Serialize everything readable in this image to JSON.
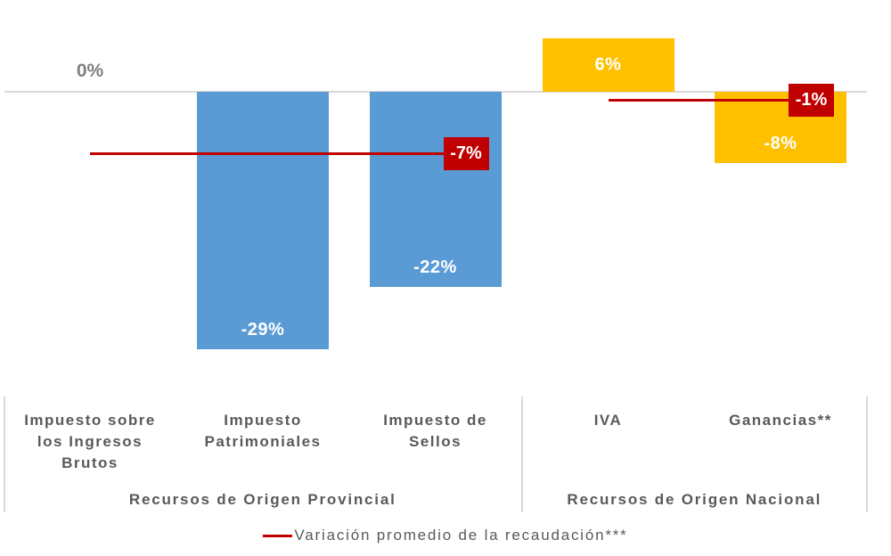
{
  "chart_data": {
    "type": "bar",
    "title": "",
    "xlabel": "",
    "ylabel": "",
    "unit": "%",
    "ylim": [
      -30,
      7
    ],
    "grid": false,
    "legend_position": "bottom-center",
    "legend": "Variación promedio de la recaudación***",
    "categories": [
      {
        "label": "Impuesto sobre los Ingresos Brutos",
        "label_lines": [
          "Impuesto sobre",
          "los Ingresos",
          "Brutos"
        ],
        "value": 0,
        "value_label": "0%",
        "group": 0
      },
      {
        "label": "Impuesto Patrimoniales",
        "label_lines": [
          "Impuesto",
          "Patrimoniales"
        ],
        "value": -29,
        "value_label": "-29%",
        "group": 0
      },
      {
        "label": "Impuesto de Sellos",
        "label_lines": [
          "Impuesto de",
          "Sellos"
        ],
        "value": -22,
        "value_label": "-22%",
        "group": 0
      },
      {
        "label": "IVA",
        "label_lines": [
          "IVA"
        ],
        "value": 6,
        "value_label": "6%",
        "group": 1
      },
      {
        "label": "Ganancias**",
        "label_lines": [
          "Ganancias**"
        ],
        "value": -8,
        "value_label": "-8%",
        "group": 1
      }
    ],
    "groups": [
      {
        "label": "Recursos de Origen Provincial",
        "average": -7,
        "average_label": "-7%",
        "bar_color": "#5B9BD5"
      },
      {
        "label": "Recursos de Origen Nacional",
        "average": -1,
        "average_label": "-1%",
        "bar_color": "#FFC000"
      }
    ],
    "colors": {
      "average_line": "#C00000",
      "average_label_bg": "#C00000",
      "bar_label": "#FFFFFF",
      "axis_line": "#D9D9D9",
      "text_gray": "#58595B",
      "zero_label": "#7F7F7F",
      "background": "#FFFFFF"
    }
  }
}
